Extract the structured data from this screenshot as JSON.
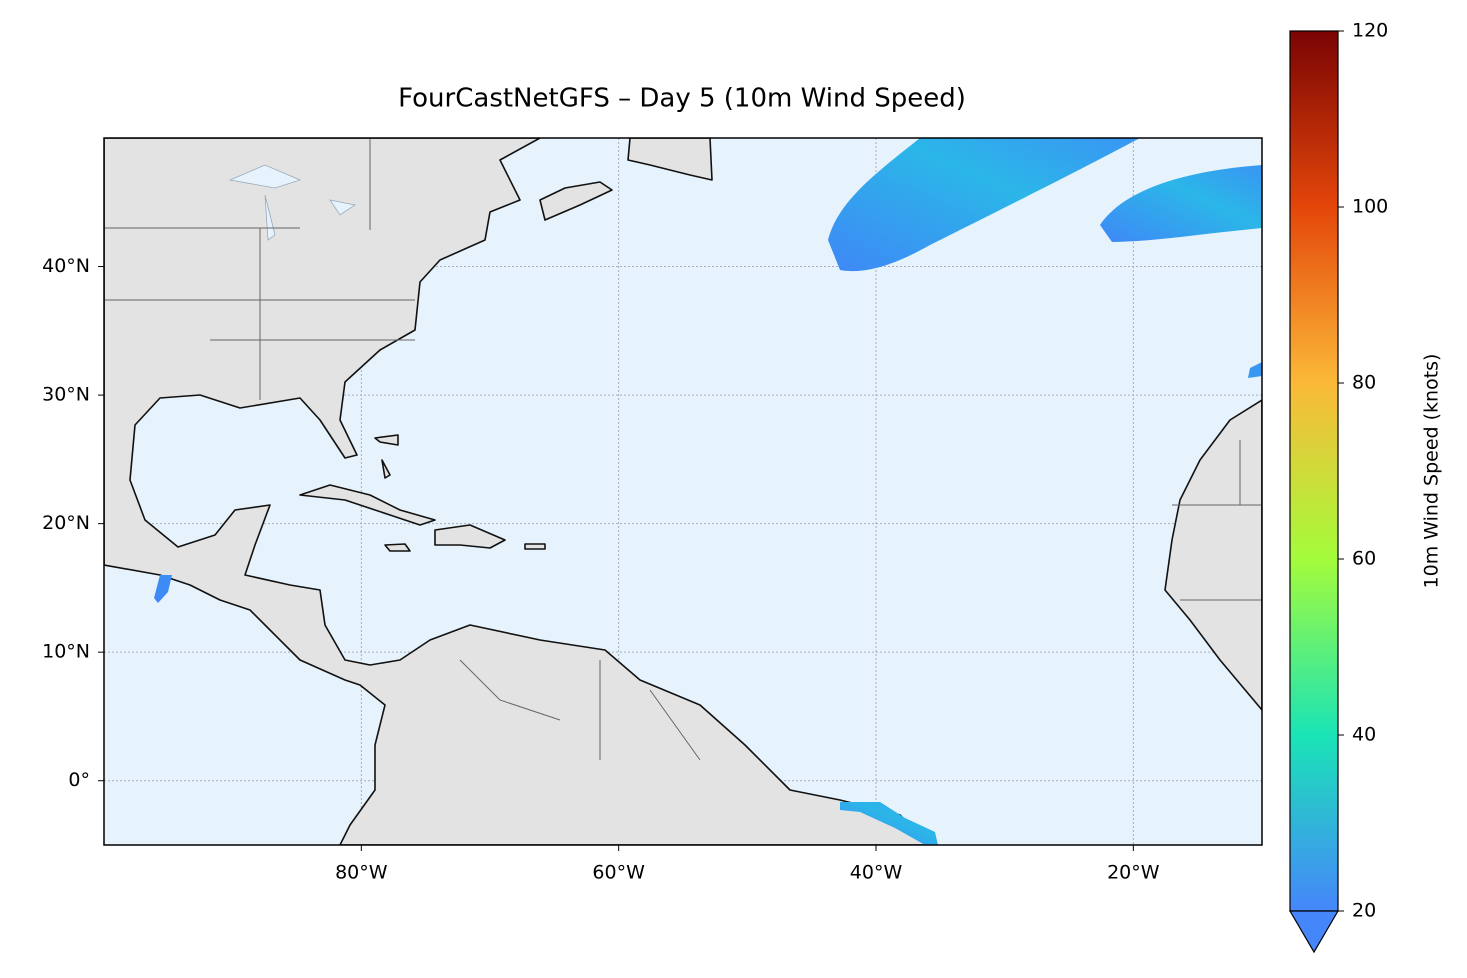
{
  "map": {
    "title": "FourCastNetGFS – Day 5 (10m Wind Speed)",
    "xlim": [
      -100,
      -10
    ],
    "ylim": [
      -5,
      50
    ],
    "xticks": [
      {
        "value": -80,
        "label": "80°W"
      },
      {
        "value": -60,
        "label": "60°W"
      },
      {
        "value": -40,
        "label": "40°W"
      },
      {
        "value": -20,
        "label": "20°W"
      }
    ],
    "yticks": [
      {
        "value": 0,
        "label": "0°"
      },
      {
        "value": 10,
        "label": "10°N"
      },
      {
        "value": 20,
        "label": "20°N"
      },
      {
        "value": 30,
        "label": "30°N"
      },
      {
        "value": 40,
        "label": "40°N"
      }
    ],
    "grid": true,
    "colorbar": {
      "label": "10m Wind Speed (knots)",
      "lim": [
        20,
        120
      ],
      "ticks": [
        20,
        40,
        60,
        80,
        100,
        120
      ],
      "colormap": [
        "#4686fb",
        "#1ae4b6",
        "#a4fc3b",
        "#fbb938",
        "#e4460a",
        "#7a0403"
      ]
    }
  }
}
